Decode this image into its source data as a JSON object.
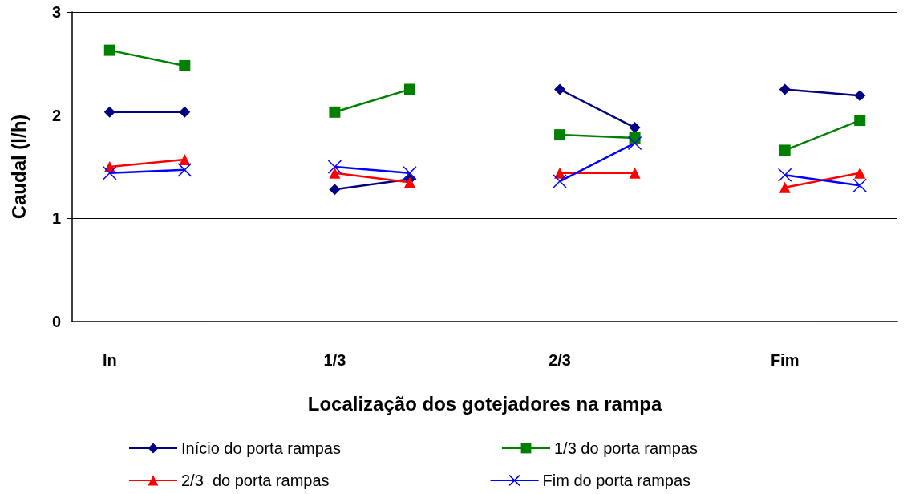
{
  "chart_data": {
    "type": "line",
    "xlabel": "Localização dos gotejadores na rampa",
    "ylabel": "Caudal (l/h)",
    "categories": [
      "In",
      null,
      null,
      "1/3",
      null,
      null,
      "2/3",
      null,
      null,
      "Fim",
      null
    ],
    "series": [
      {
        "name": "Início do porta rampas",
        "color": "#000080",
        "marker": "diamond",
        "values": [
          2.03,
          2.03,
          null,
          1.28,
          1.38,
          null,
          2.25,
          1.88,
          null,
          2.25,
          2.19
        ]
      },
      {
        "name": "1/3 do porta rampas",
        "color": "#008000",
        "marker": "square",
        "values": [
          2.63,
          2.48,
          null,
          2.03,
          2.25,
          null,
          1.81,
          1.78,
          null,
          1.66,
          1.95
        ]
      },
      {
        "name": "2/3  do porta rampas",
        "color": "#ff0000",
        "marker": "triangle",
        "values": [
          1.5,
          1.57,
          null,
          1.44,
          1.35,
          null,
          1.44,
          1.44,
          null,
          1.3,
          1.44
        ]
      },
      {
        "name": "Fim do porta rampas",
        "color": "#0000ff",
        "marker": "cross",
        "values": [
          1.44,
          1.47,
          null,
          1.5,
          1.44,
          null,
          1.36,
          1.73,
          null,
          1.42,
          1.32
        ]
      }
    ],
    "ylim": [
      0,
      3
    ],
    "yticks": [
      0,
      1,
      2,
      3
    ],
    "grid": "y",
    "legend": "bottom"
  }
}
